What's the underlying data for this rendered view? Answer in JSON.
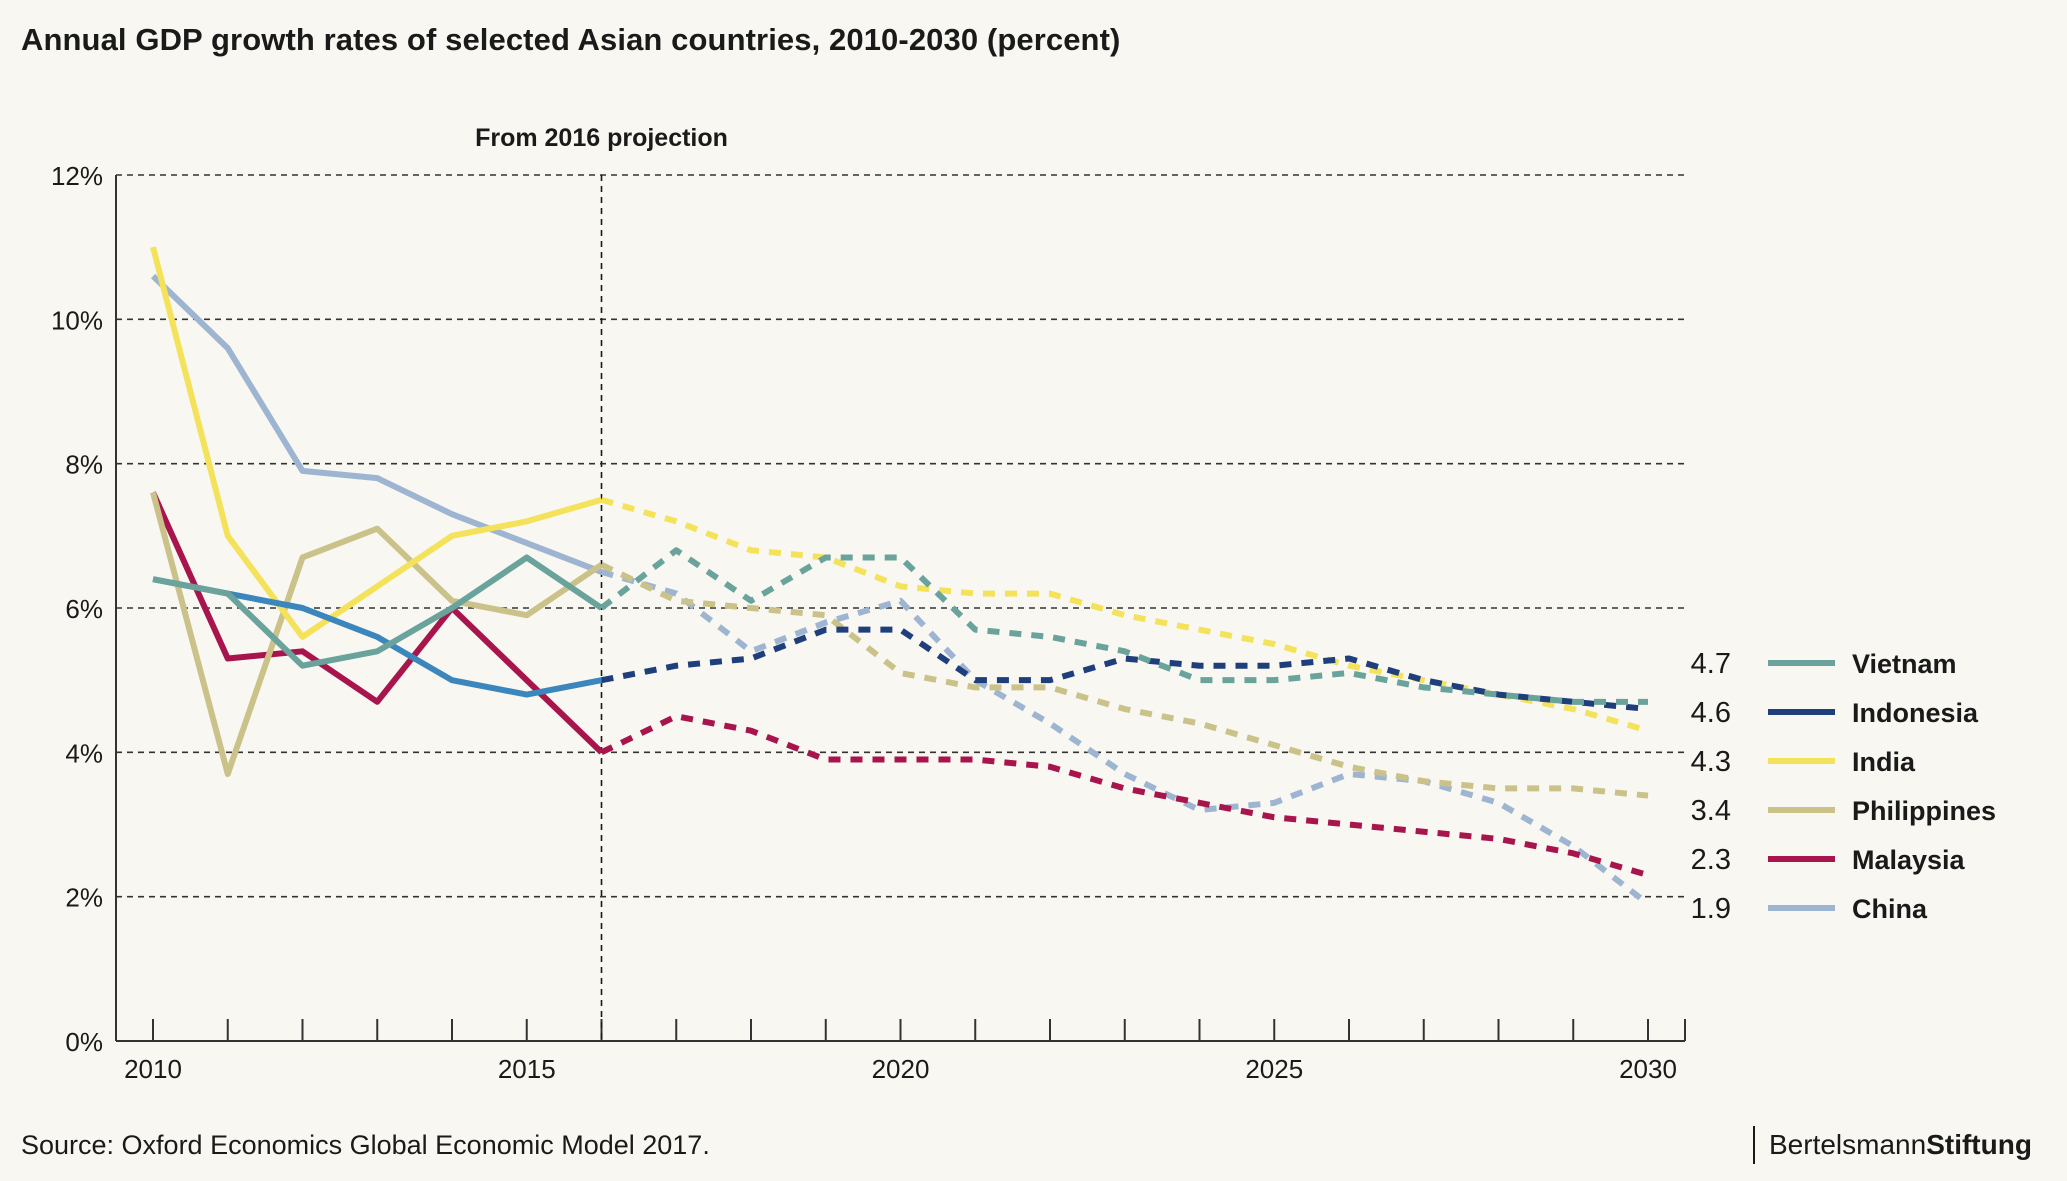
{
  "title": "Annual GDP growth rates of selected Asian countries, 2010-2030 (percent)",
  "source": "Source: Oxford Economics Global Economic Model 2017.",
  "brand": {
    "part1": "Bertelsmann",
    "part2": "Stiftung"
  },
  "chart_data": {
    "type": "line",
    "annotation": "From 2016 projection",
    "projection_start_year": 2016,
    "xlim": [
      2010,
      2030
    ],
    "ylim": [
      0,
      12
    ],
    "x_ticks": [
      2010,
      2015,
      2020,
      2025,
      2030
    ],
    "y_ticks": [
      0,
      2,
      4,
      6,
      8,
      10,
      12
    ],
    "y_tick_labels": [
      "0%",
      "2%",
      "4%",
      "6%",
      "8%",
      "10%",
      "12%"
    ],
    "grid": "horizontal dashed",
    "legend_position": "right",
    "x": [
      2010,
      2011,
      2012,
      2013,
      2014,
      2015,
      2016,
      2017,
      2018,
      2019,
      2020,
      2021,
      2022,
      2023,
      2024,
      2025,
      2026,
      2027,
      2028,
      2029,
      2030
    ],
    "series": [
      {
        "name": "Vietnam",
        "end_label": "4.7",
        "color": "#6aa39b",
        "values": [
          6.4,
          6.2,
          5.2,
          5.4,
          6.0,
          6.7,
          6.0,
          6.8,
          6.1,
          6.7,
          6.7,
          5.7,
          5.6,
          5.4,
          5.0,
          5.0,
          5.1,
          4.9,
          4.8,
          4.7,
          4.7
        ]
      },
      {
        "name": "Indonesia",
        "end_label": "4.6",
        "color": "#1f3e7c",
        "solid_color": "#3a86bd",
        "values": [
          6.4,
          6.2,
          6.0,
          5.6,
          5.0,
          4.8,
          5.0,
          5.2,
          5.3,
          5.7,
          5.7,
          5.0,
          5.0,
          5.3,
          5.2,
          5.2,
          5.3,
          5.0,
          4.8,
          4.7,
          4.6
        ]
      },
      {
        "name": "India",
        "end_label": "4.3",
        "color": "#f4e25a",
        "values": [
          11.0,
          7.0,
          5.6,
          6.3,
          7.0,
          7.2,
          7.5,
          7.2,
          6.8,
          6.7,
          6.3,
          6.2,
          6.2,
          5.9,
          5.7,
          5.5,
          5.2,
          5.0,
          4.8,
          4.6,
          4.3
        ]
      },
      {
        "name": "Philippines",
        "end_label": "3.4",
        "color": "#cbc28a",
        "values": [
          7.6,
          3.7,
          6.7,
          7.1,
          6.1,
          5.9,
          6.6,
          6.1,
          6.0,
          5.9,
          5.1,
          4.9,
          4.9,
          4.6,
          4.4,
          4.1,
          3.8,
          3.6,
          3.5,
          3.5,
          3.4
        ]
      },
      {
        "name": "Malaysia",
        "end_label": "2.3",
        "color": "#a8154d",
        "values": [
          7.6,
          5.3,
          5.4,
          4.7,
          6.0,
          5.0,
          4.0,
          4.5,
          4.3,
          3.9,
          3.9,
          3.9,
          3.8,
          3.5,
          3.3,
          3.1,
          3.0,
          2.9,
          2.8,
          2.6,
          2.3
        ]
      },
      {
        "name": "China",
        "end_label": "1.9",
        "color": "#9eb5d2",
        "values": [
          10.6,
          9.6,
          7.9,
          7.8,
          7.3,
          6.9,
          6.5,
          6.2,
          5.4,
          5.8,
          6.1,
          5.0,
          4.4,
          3.7,
          3.2,
          3.3,
          3.7,
          3.6,
          3.3,
          2.7,
          1.9
        ]
      }
    ]
  }
}
